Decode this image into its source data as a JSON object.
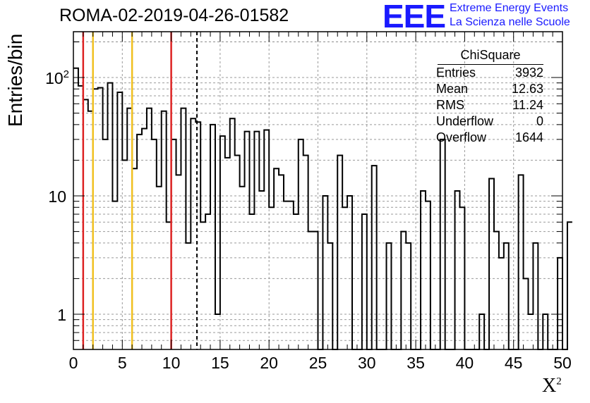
{
  "header": {
    "title": "ROMA-02-2019-04-26-01582",
    "logo_text": "EEE",
    "logo_line1": "Extreme Energy Events",
    "logo_line2": "La Scienza nelle Scuole"
  },
  "stats_box": {
    "title": "ChiSquare",
    "rows": [
      {
        "label": "Entries",
        "value": "3932"
      },
      {
        "label": "Mean",
        "value": "12.63"
      },
      {
        "label": "RMS",
        "value": "11.24"
      },
      {
        "label": "Underflow",
        "value": "0"
      },
      {
        "label": "Overflow",
        "value": "1644"
      }
    ]
  },
  "colors": {
    "histogram": "#000000",
    "red_lines": "#dd2222",
    "yellow_lines": "#f0c020",
    "grid": "#999999",
    "logo": "#1a1aff"
  },
  "chart_data": {
    "type": "histogram",
    "title": "ROMA-02-2019-04-26-01582",
    "xlabel": "X²",
    "ylabel": "Entries/bin",
    "x_scale": "linear",
    "y_scale": "log",
    "xlim": [
      0,
      50
    ],
    "ylim": [
      0.5,
      250
    ],
    "grid": true,
    "bin_width": 0.5,
    "bin_edges_start": 0,
    "x_ticks": [
      "0",
      "5",
      "10",
      "15",
      "20",
      "25",
      "30",
      "35",
      "40",
      "45",
      "50"
    ],
    "y_ticks": [
      "1",
      "10",
      "10²"
    ],
    "values": [
      120,
      85,
      65,
      52,
      80,
      82,
      30,
      90,
      9,
      75,
      20,
      55,
      17,
      33,
      37,
      55,
      30,
      12,
      52,
      6,
      30,
      15,
      55,
      4,
      45,
      42,
      6,
      7,
      40,
      1,
      32,
      21,
      45,
      22,
      12,
      35,
      7,
      35,
      11,
      36,
      8,
      17,
      15,
      9,
      9,
      7,
      30,
      22,
      5,
      5,
      0.5,
      10,
      4,
      0.5,
      22,
      8,
      10,
      0.5,
      0.5,
      7,
      0.5,
      18,
      0.5,
      0.5,
      4,
      0.5,
      0.5,
      5,
      4,
      0.5,
      0.5,
      11,
      9,
      0.5,
      0.5,
      30,
      0.5,
      0.5,
      11,
      8,
      0.5,
      0.5,
      0.5,
      1,
      0.5,
      14,
      5,
      3,
      4,
      0.5,
      0.5,
      15,
      2,
      1,
      4,
      0.5,
      1,
      0.5,
      0.5,
      3,
      0.5,
      6
    ],
    "vertical_lines": [
      {
        "x": 1,
        "color": "red",
        "style": "solid"
      },
      {
        "x": 2,
        "color": "yellow",
        "style": "solid"
      },
      {
        "x": 6,
        "color": "yellow",
        "style": "solid"
      },
      {
        "x": 10,
        "color": "red",
        "style": "solid"
      },
      {
        "x": 12.63,
        "color": "black",
        "style": "dashed"
      }
    ],
    "legend": "none"
  }
}
